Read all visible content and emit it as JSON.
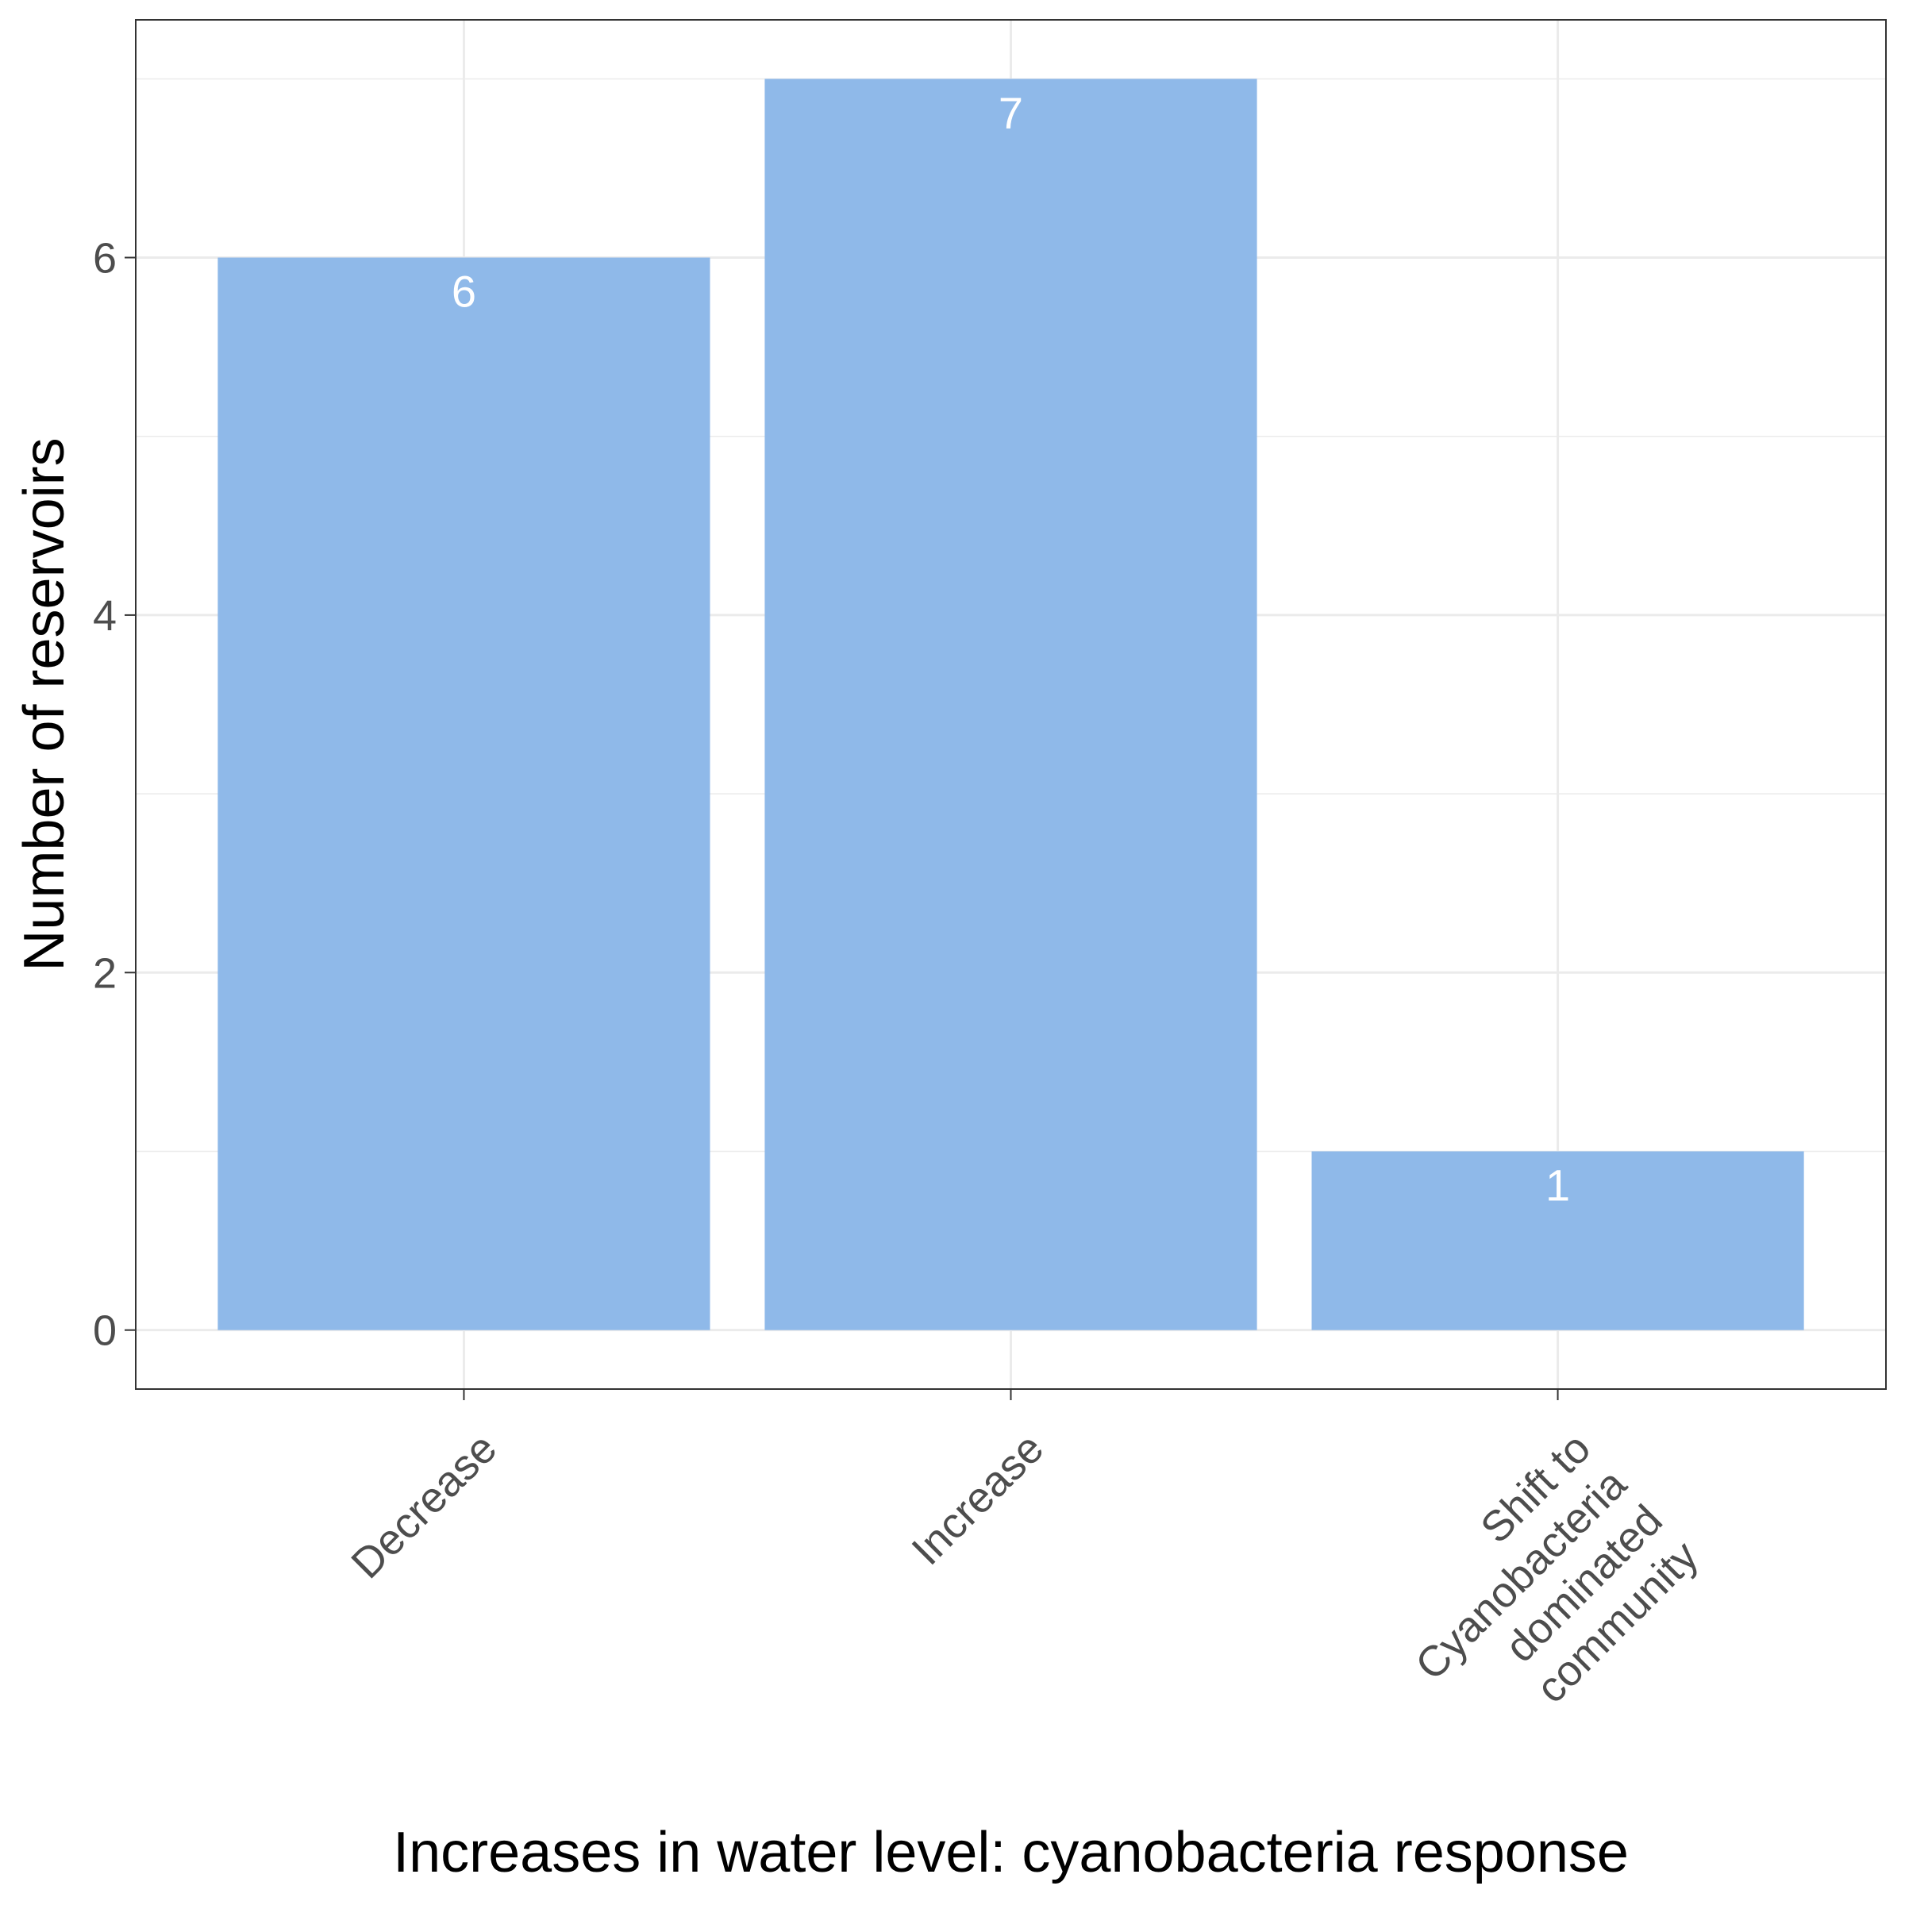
{
  "chart_data": {
    "type": "bar",
    "categories": [
      "Decrease",
      "Increase",
      "Shift to Cyanobacteria dominated community"
    ],
    "category_label_lines": [
      [
        "Decrease"
      ],
      [
        "Increase"
      ],
      [
        "Shift to",
        "Cyanobacteria",
        "dominated",
        "community"
      ]
    ],
    "values": [
      6,
      7,
      1
    ],
    "data_labels": [
      "6",
      "7",
      "1"
    ],
    "title": "",
    "xlabel": "Increases in water level: cyanobacteria response",
    "ylabel": "Number of reservoirs",
    "ylim": [
      -0.33,
      7.33
    ],
    "y_ticks": [
      0,
      2,
      4,
      6
    ],
    "y_tick_labels": [
      "0",
      "2",
      "4",
      "6"
    ],
    "grid": true,
    "legend": "none",
    "colors": {
      "bar": "#8fb9e9",
      "data_label": "#ffffff",
      "grid": "#ebebeb",
      "panel_border": "#333333",
      "tick_label": "#4d4d4d",
      "axis_title": "#000000"
    }
  }
}
